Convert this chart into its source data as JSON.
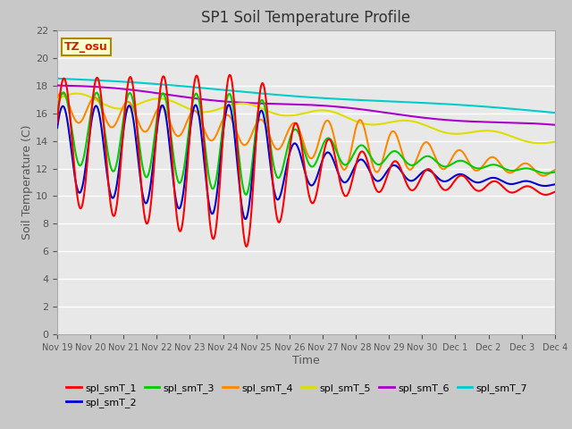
{
  "title": "SP1 Soil Temperature Profile",
  "xlabel": "Time",
  "ylabel": "Soil Temperature (C)",
  "ylim": [
    0,
    22
  ],
  "fig_facecolor": "#c8c8c8",
  "ax_facecolor": "#e8e8e8",
  "series_colors": {
    "spl_smT_1": "#ff0000",
    "spl_smT_2": "#0000cc",
    "spl_smT_3": "#00cc00",
    "spl_smT_4": "#ff8800",
    "spl_smT_5": "#dddd00",
    "spl_smT_6": "#aa00cc",
    "spl_smT_7": "#00cccc"
  },
  "x_tick_labels": [
    "Nov 19",
    "Nov 20",
    "Nov 21",
    "Nov 22",
    "Nov 23",
    "Nov 24",
    "Nov 25",
    "Nov 26",
    "Nov 27",
    "Nov 28",
    "Nov 29",
    "Nov 30",
    "Dec 1",
    "Dec 2",
    "Dec 3",
    "Dec 4"
  ],
  "tz_label": "TZ_osu",
  "num_points": 1000
}
